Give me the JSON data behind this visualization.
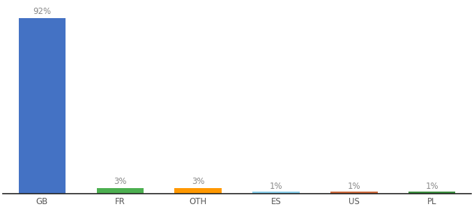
{
  "categories": [
    "GB",
    "FR",
    "OTH",
    "ES",
    "US",
    "PL"
  ],
  "values": [
    92,
    3,
    3,
    1,
    1,
    1
  ],
  "labels": [
    "92%",
    "3%",
    "3%",
    "1%",
    "1%",
    "1%"
  ],
  "bar_colors": [
    "#4472C4",
    "#4CAF50",
    "#FF9800",
    "#87CEEB",
    "#CD6839",
    "#388E3C"
  ],
  "ylim": [
    0,
    100
  ],
  "label_fontsize": 8.5,
  "tick_fontsize": 8.5,
  "background_color": "#ffffff",
  "bar_width": 0.6
}
